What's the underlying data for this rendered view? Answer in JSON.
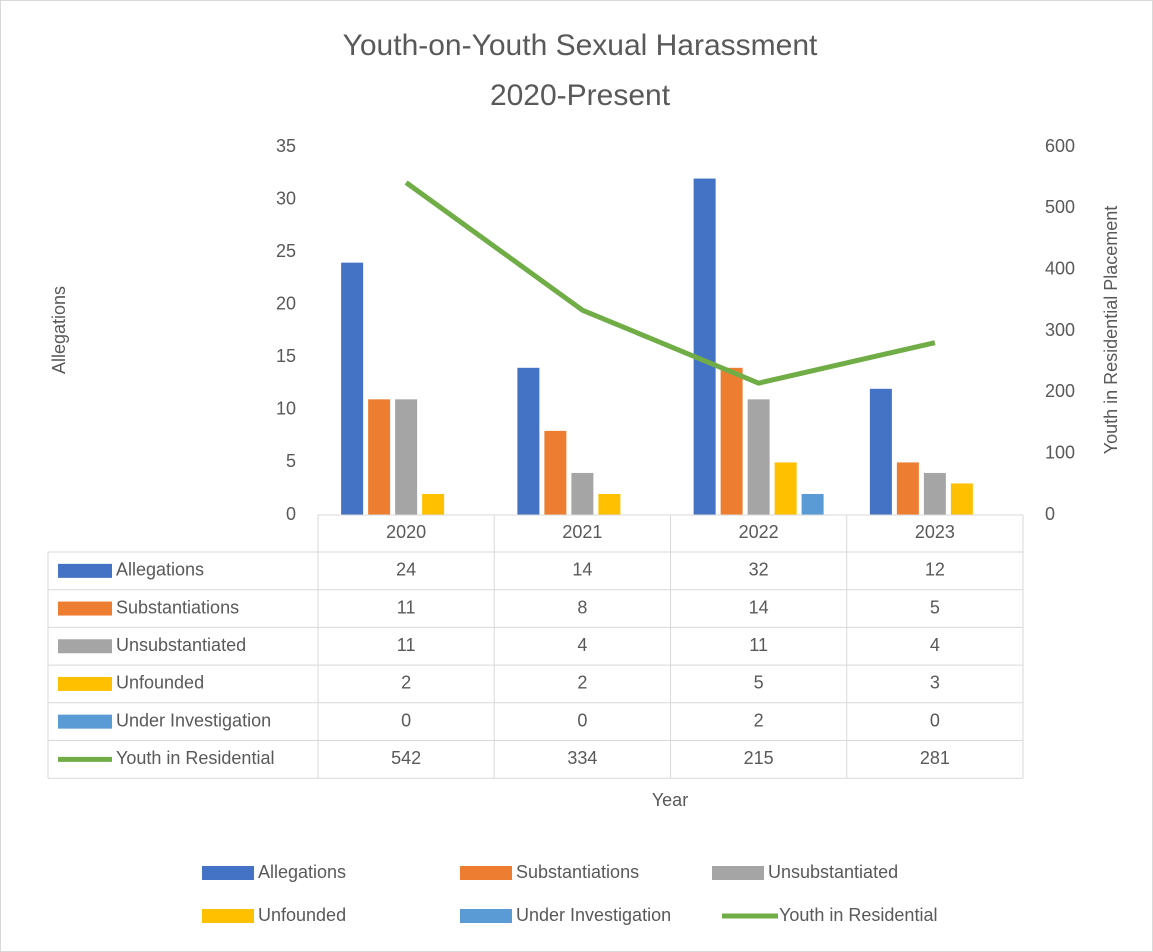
{
  "chart_data": {
    "type": "bar",
    "title": [
      "Youth-on-Youth Sexual Harassment",
      "2020-Present"
    ],
    "categories": [
      "2020",
      "2021",
      "2022",
      "2023"
    ],
    "x_label": "Year",
    "y_label": "Allegations",
    "y2_label": "Youth in Residential Placement",
    "ylim": [
      0,
      35
    ],
    "yticks": [
      0,
      5,
      10,
      15,
      20,
      25,
      30,
      35
    ],
    "y2lim": [
      0,
      600
    ],
    "y2ticks": [
      0,
      100,
      200,
      300,
      400,
      500,
      600
    ],
    "series": [
      {
        "name": "Allegations",
        "color": "#4472c4",
        "values": [
          24,
          14,
          32,
          12
        ]
      },
      {
        "name": "Substantiations",
        "color": "#ed7d31",
        "values": [
          11,
          8,
          14,
          5
        ]
      },
      {
        "name": "Unsubstantiated",
        "color": "#a5a5a5",
        "values": [
          11,
          4,
          11,
          4
        ]
      },
      {
        "name": "Unfounded",
        "color": "#ffc000",
        "values": [
          2,
          2,
          5,
          3
        ]
      },
      {
        "name": "Under Investigation",
        "color": "#5b9bd5",
        "values": [
          0,
          0,
          2,
          0
        ]
      },
      {
        "name": "Youth in Residential",
        "color": "#70ad47",
        "values": [
          542,
          334,
          215,
          281
        ],
        "type": "line",
        "axis": "y2"
      }
    ],
    "legend": "bottom",
    "data_table": true
  }
}
